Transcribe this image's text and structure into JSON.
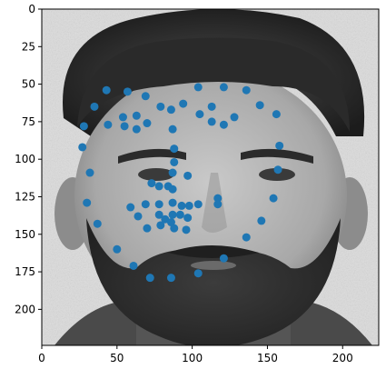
{
  "figure": {
    "image_subject": "grayscale photo of a bearded man's face with facial landmark points overlaid",
    "marker_color": "#1f77b4",
    "axis_color": "#000000"
  },
  "chart_data": {
    "type": "scatter",
    "title": "",
    "xlabel": "",
    "ylabel": "",
    "xlim": [
      0,
      224
    ],
    "ylim": [
      224,
      0
    ],
    "y_inverted": true,
    "grid": false,
    "x_ticks": [
      0,
      50,
      100,
      150,
      200
    ],
    "y_ticks": [
      0,
      25,
      50,
      75,
      100,
      125,
      150,
      175,
      200
    ],
    "series": [
      {
        "points": [
          [
            43,
            54
          ],
          [
            57,
            55
          ],
          [
            69,
            58
          ],
          [
            104,
            52
          ],
          [
            121,
            52
          ],
          [
            136,
            54
          ],
          [
            35,
            65
          ],
          [
            79,
            65
          ],
          [
            94,
            63
          ],
          [
            86,
            67
          ],
          [
            113,
            65
          ],
          [
            145,
            64
          ],
          [
            54,
            72
          ],
          [
            63,
            71
          ],
          [
            105,
            70
          ],
          [
            128,
            72
          ],
          [
            156,
            70
          ],
          [
            28,
            78
          ],
          [
            44,
            77
          ],
          [
            55,
            78
          ],
          [
            63,
            80
          ],
          [
            70,
            76
          ],
          [
            87,
            80
          ],
          [
            113,
            75
          ],
          [
            121,
            77
          ],
          [
            88,
            93
          ],
          [
            158,
            91
          ],
          [
            27,
            92
          ],
          [
            88,
            102
          ],
          [
            87,
            109
          ],
          [
            32,
            109
          ],
          [
            97,
            111
          ],
          [
            157,
            107
          ],
          [
            73,
            116
          ],
          [
            78,
            118
          ],
          [
            84,
            118
          ],
          [
            87,
            120
          ],
          [
            117,
            126
          ],
          [
            154,
            126
          ],
          [
            69,
            130
          ],
          [
            78,
            130
          ],
          [
            87,
            129
          ],
          [
            93,
            131
          ],
          [
            98,
            131
          ],
          [
            104,
            130
          ],
          [
            117,
            130
          ],
          [
            59,
            132
          ],
          [
            30,
            129
          ],
          [
            64,
            138
          ],
          [
            78,
            137
          ],
          [
            82,
            140
          ],
          [
            87,
            137
          ],
          [
            92,
            137
          ],
          [
            97,
            139
          ],
          [
            86,
            142
          ],
          [
            79,
            144
          ],
          [
            70,
            146
          ],
          [
            88,
            146
          ],
          [
            96,
            147
          ],
          [
            146,
            141
          ],
          [
            37,
            143
          ],
          [
            136,
            152
          ],
          [
            50,
            160
          ],
          [
            121,
            166
          ],
          [
            61,
            171
          ],
          [
            72,
            179
          ],
          [
            86,
            179
          ],
          [
            104,
            176
          ]
        ]
      }
    ]
  }
}
